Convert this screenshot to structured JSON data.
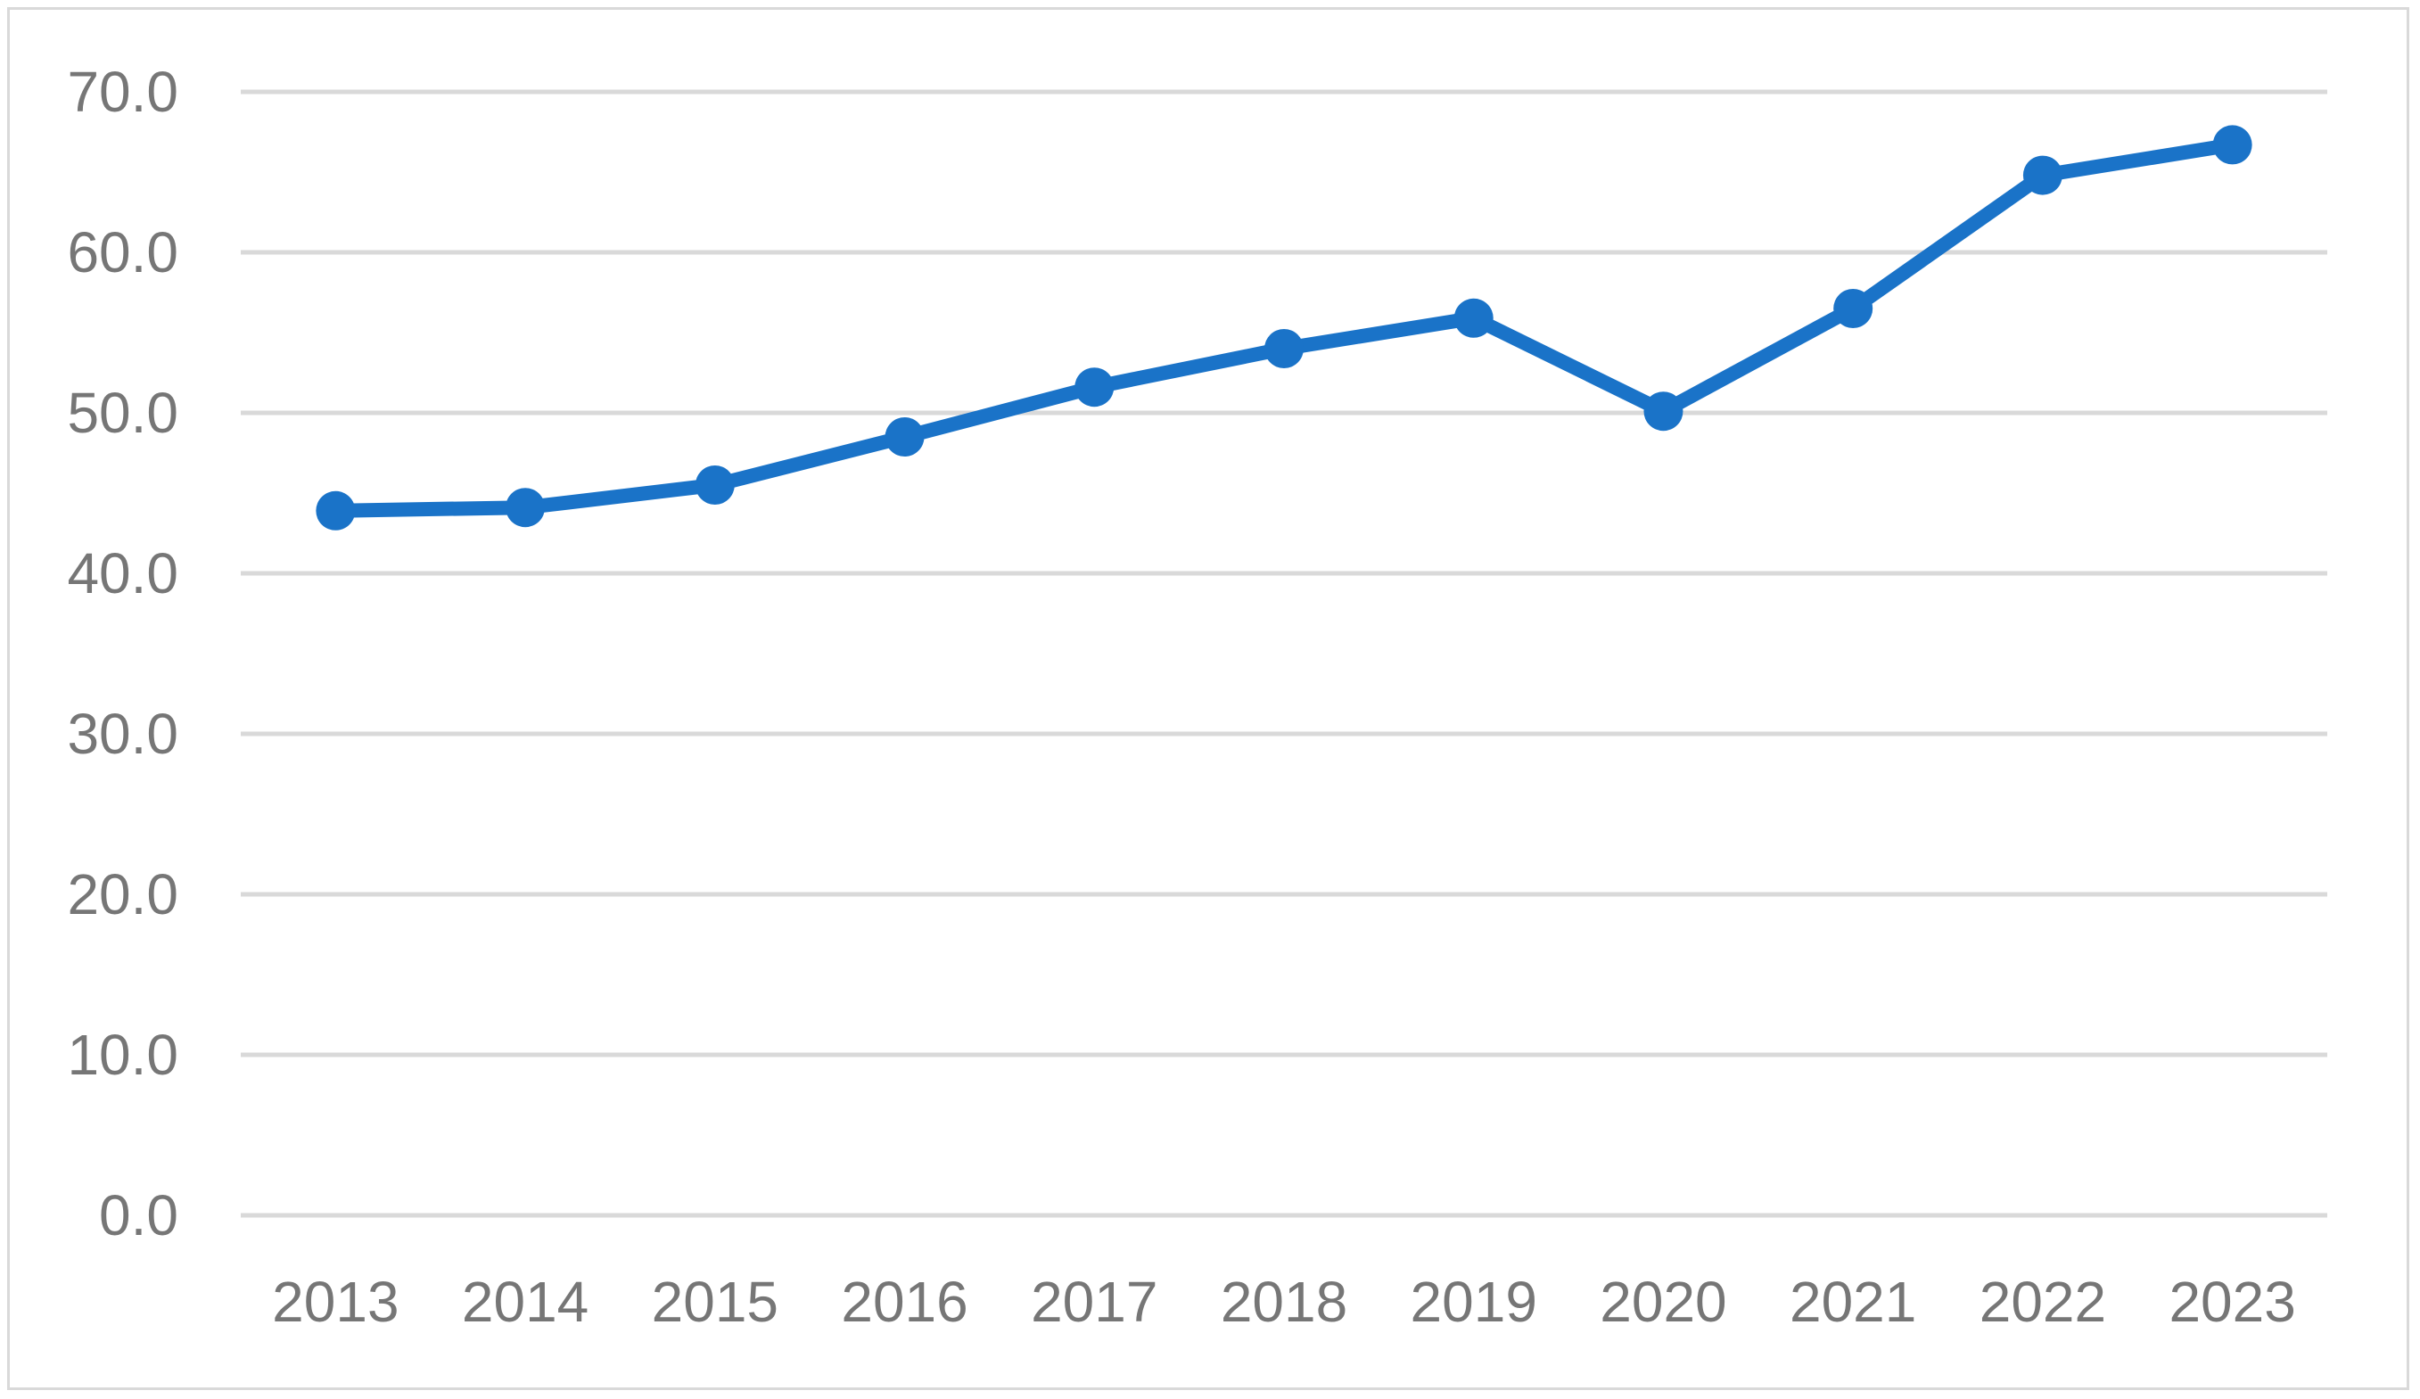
{
  "chart_data": {
    "type": "line",
    "title": "",
    "xlabel": "",
    "ylabel": "",
    "categories": [
      "2013",
      "2014",
      "2015",
      "2016",
      "2017",
      "2018",
      "2019",
      "2020",
      "2021",
      "2022",
      "2023"
    ],
    "series": [
      {
        "values": [
          43.9,
          44.1,
          45.5,
          48.5,
          51.6,
          54.0,
          55.9,
          50.1,
          56.5,
          64.8,
          66.7
        ]
      }
    ],
    "ylim": [
      0,
      70
    ],
    "y_ticks": [
      "0.0",
      "10.0",
      "20.0",
      "30.0",
      "40.0",
      "50.0",
      "60.0",
      "70.0"
    ],
    "grid": "horizontal",
    "legend": "none",
    "colors": {
      "series": "#1a73c8",
      "grid": "#d9d9d9",
      "tick_text": "#767676",
      "frame": "#d9d9d9"
    }
  }
}
